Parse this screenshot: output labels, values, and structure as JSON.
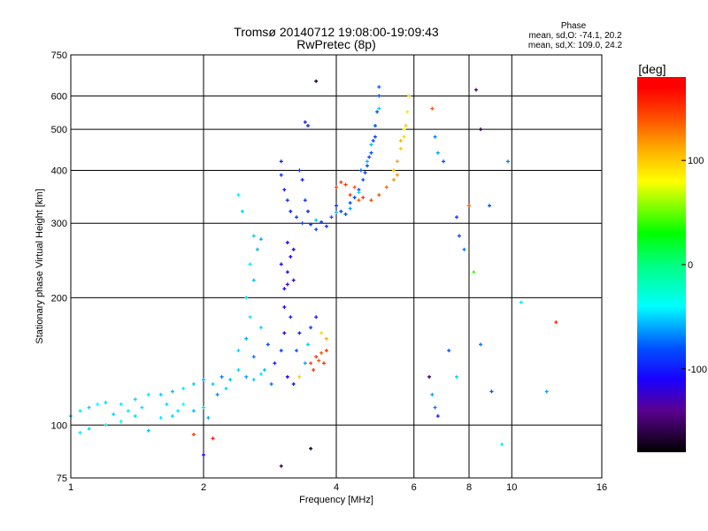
{
  "chart_data": {
    "type": "scatter",
    "title": "Tromsø 20140712 19:08:00-19:09:43",
    "subtitle": "RwPretec (8p)",
    "stats": {
      "heading": "Phase",
      "o_line": "mean, sd,O: -74.1, 20.2",
      "x_line": "mean, sd,X: 109.0, 24.2"
    },
    "xlabel": "Frequency [MHz]",
    "ylabel": "Stationary phase Virtual Height [km]",
    "xscale": "log2",
    "yscale": "log10",
    "xlim": [
      1,
      16
    ],
    "ylim": [
      75,
      750
    ],
    "xticks": [
      1,
      2,
      4,
      6,
      8,
      10,
      16
    ],
    "xtick_labels": [
      "1",
      "2",
      "4",
      "6",
      "8",
      "10",
      "16"
    ],
    "xgrid": [
      2,
      4,
      6,
      8,
      10
    ],
    "yticks": [
      75,
      100,
      200,
      300,
      400,
      500,
      600,
      750
    ],
    "ytick_labels": [
      "75",
      "100",
      "200",
      "300",
      "400",
      "500",
      "600",
      "750"
    ],
    "ygrid": [
      100,
      200,
      300,
      400,
      500,
      600
    ],
    "colorbar": {
      "label": "[deg]",
      "range": [
        -180,
        180
      ],
      "ticks": [
        100,
        0,
        -100
      ],
      "tick_labels": [
        "100",
        "0",
        "-100"
      ],
      "stops": [
        [
          -180,
          "#000000"
        ],
        [
          -140,
          "#5a0090"
        ],
        [
          -110,
          "#1a00ff"
        ],
        [
          -80,
          "#0050ff"
        ],
        [
          -40,
          "#00ffff"
        ],
        [
          0,
          "#00ff80"
        ],
        [
          30,
          "#00ff00"
        ],
        [
          80,
          "#ffff00"
        ],
        [
          110,
          "#ffb000"
        ],
        [
          140,
          "#ff5000"
        ],
        [
          170,
          "#ff0000"
        ],
        [
          180,
          "#ff0000"
        ]
      ]
    },
    "points": [
      [
        1.0,
        105,
        -50
      ],
      [
        1.05,
        108,
        -45
      ],
      [
        1.1,
        110,
        -50
      ],
      [
        1.15,
        112,
        -40
      ],
      [
        1.2,
        113,
        -50
      ],
      [
        1.3,
        112,
        -45
      ],
      [
        1.4,
        115,
        -50
      ],
      [
        1.5,
        118,
        -45
      ],
      [
        1.6,
        118,
        -50
      ],
      [
        1.7,
        120,
        -55
      ],
      [
        1.8,
        122,
        -45
      ],
      [
        1.9,
        125,
        -50
      ],
      [
        2.0,
        128,
        -60
      ],
      [
        2.1,
        125,
        -50
      ],
      [
        2.2,
        130,
        -70
      ],
      [
        2.3,
        128,
        -55
      ],
      [
        2.4,
        135,
        -50
      ],
      [
        2.5,
        130,
        -60
      ],
      [
        2.6,
        128,
        -50
      ],
      [
        2.7,
        132,
        -45
      ],
      [
        1.05,
        96,
        -45
      ],
      [
        1.1,
        98,
        -50
      ],
      [
        1.2,
        100,
        -45
      ],
      [
        1.3,
        102,
        -40
      ],
      [
        1.4,
        105,
        -50
      ],
      [
        1.5,
        97,
        -55
      ],
      [
        1.6,
        104,
        -45
      ],
      [
        1.7,
        105,
        -50
      ],
      [
        1.9,
        108,
        -55
      ],
      [
        2.0,
        110,
        -50
      ],
      [
        2.05,
        104,
        -60
      ],
      [
        1.8,
        112,
        -40
      ],
      [
        1.35,
        108,
        -45
      ],
      [
        1.25,
        106,
        -50
      ],
      [
        1.45,
        110,
        -45
      ],
      [
        1.65,
        112,
        -50
      ],
      [
        1.75,
        108,
        -45
      ],
      [
        2.15,
        118,
        -65
      ],
      [
        2.25,
        122,
        -50
      ],
      [
        2.4,
        150,
        -50
      ],
      [
        2.5,
        160,
        -60
      ],
      [
        2.55,
        180,
        -45
      ],
      [
        2.6,
        145,
        -70
      ],
      [
        2.7,
        170,
        -50
      ],
      [
        2.8,
        155,
        -80
      ],
      [
        2.9,
        140,
        -100
      ],
      [
        3.0,
        150,
        -90
      ],
      [
        3.1,
        130,
        -110
      ],
      [
        3.2,
        125,
        -100
      ],
      [
        3.3,
        165,
        -100
      ],
      [
        3.4,
        140,
        -60
      ],
      [
        3.5,
        170,
        -90
      ],
      [
        3.6,
        180,
        -100
      ],
      [
        2.75,
        135,
        -55
      ],
      [
        2.85,
        125,
        -70
      ],
      [
        3.05,
        165,
        -120
      ],
      [
        3.25,
        150,
        -80
      ],
      [
        3.45,
        155,
        -50
      ],
      [
        2.5,
        200,
        -50
      ],
      [
        2.6,
        220,
        -55
      ],
      [
        2.55,
        240,
        -45
      ],
      [
        2.6,
        280,
        -50
      ],
      [
        2.7,
        275,
        -60
      ],
      [
        2.4,
        350,
        -45
      ],
      [
        2.45,
        320,
        -50
      ],
      [
        2.65,
        260,
        -55
      ],
      [
        3.5,
        140,
        145
      ],
      [
        3.6,
        145,
        150
      ],
      [
        3.7,
        148,
        140
      ],
      [
        3.8,
        150,
        155
      ],
      [
        3.55,
        135,
        150
      ],
      [
        3.65,
        142,
        140
      ],
      [
        3.3,
        130,
        100
      ],
      [
        3.7,
        165,
        95
      ],
      [
        3.8,
        160,
        110
      ],
      [
        3.75,
        140,
        150
      ],
      [
        3.05,
        210,
        -110
      ],
      [
        3.1,
        230,
        -120
      ],
      [
        3.15,
        250,
        -115
      ],
      [
        3.1,
        270,
        -110
      ],
      [
        3.2,
        220,
        -120
      ],
      [
        3.05,
        190,
        -110
      ],
      [
        3.15,
        180,
        -100
      ],
      [
        3.0,
        240,
        -105
      ],
      [
        3.2,
        260,
        -115
      ],
      [
        3.1,
        215,
        -130
      ],
      [
        3.0,
        420,
        -100
      ],
      [
        3.0,
        390,
        -95
      ],
      [
        3.05,
        360,
        -100
      ],
      [
        3.1,
        340,
        -95
      ],
      [
        3.15,
        320,
        -100
      ],
      [
        3.25,
        310,
        -90
      ],
      [
        3.35,
        300,
        -85
      ],
      [
        3.5,
        298,
        -90
      ],
      [
        3.7,
        302,
        -85
      ],
      [
        3.9,
        310,
        -80
      ],
      [
        4.1,
        320,
        -85
      ],
      [
        4.3,
        335,
        -80
      ],
      [
        4.5,
        360,
        -85
      ],
      [
        4.6,
        380,
        -80
      ],
      [
        4.7,
        410,
        -85
      ],
      [
        4.8,
        440,
        -80
      ],
      [
        4.85,
        470,
        -85
      ],
      [
        4.9,
        510,
        -80
      ],
      [
        4.95,
        550,
        -85
      ],
      [
        5.0,
        600,
        -80
      ],
      [
        5.0,
        630,
        -75
      ],
      [
        3.35,
        380,
        -100
      ],
      [
        3.3,
        400,
        -95
      ],
      [
        3.4,
        340,
        -90
      ],
      [
        3.45,
        320,
        -95
      ],
      [
        4.0,
        330,
        -90
      ],
      [
        4.4,
        345,
        -85
      ],
      [
        4.2,
        315,
        -80
      ],
      [
        3.6,
        290,
        -85
      ],
      [
        3.8,
        295,
        -90
      ],
      [
        4.65,
        395,
        -90
      ],
      [
        4.75,
        430,
        -85
      ],
      [
        4.55,
        400,
        -80
      ],
      [
        4.9,
        480,
        -90
      ],
      [
        3.4,
        520,
        -100
      ],
      [
        3.45,
        510,
        -95
      ],
      [
        4.0,
        318,
        -55
      ],
      [
        4.5,
        355,
        -50
      ],
      [
        4.8,
        460,
        -55
      ],
      [
        5.0,
        560,
        -50
      ],
      [
        4.3,
        325,
        -60
      ],
      [
        3.6,
        305,
        -55
      ],
      [
        4.7,
        420,
        -55
      ],
      [
        4.2,
        370,
        150
      ],
      [
        4.4,
        365,
        140
      ],
      [
        4.6,
        345,
        150
      ],
      [
        4.8,
        340,
        145
      ],
      [
        5.0,
        350,
        140
      ],
      [
        5.2,
        365,
        135
      ],
      [
        5.4,
        380,
        120
      ],
      [
        4.3,
        350,
        150
      ],
      [
        4.0,
        365,
        145
      ],
      [
        4.1,
        375,
        150
      ],
      [
        4.5,
        340,
        140
      ],
      [
        5.4,
        400,
        110
      ],
      [
        5.5,
        420,
        115
      ],
      [
        5.6,
        450,
        100
      ],
      [
        5.7,
        480,
        95
      ],
      [
        5.75,
        510,
        100
      ],
      [
        5.8,
        550,
        90
      ],
      [
        5.85,
        600,
        95
      ],
      [
        5.5,
        390,
        120
      ],
      [
        5.6,
        470,
        110
      ],
      [
        5.7,
        500,
        85
      ],
      [
        6.6,
        560,
        140
      ],
      [
        6.7,
        480,
        -70
      ],
      [
        6.8,
        440,
        -60
      ],
      [
        7.0,
        420,
        -80
      ],
      [
        7.5,
        310,
        -90
      ],
      [
        7.6,
        280,
        -80
      ],
      [
        7.8,
        260,
        -70
      ],
      [
        8.0,
        330,
        140
      ],
      [
        8.3,
        620,
        -150
      ],
      [
        8.5,
        500,
        -160
      ],
      [
        8.9,
        330,
        -80
      ],
      [
        6.5,
        130,
        -150
      ],
      [
        6.6,
        118,
        -60
      ],
      [
        6.7,
        110,
        -70
      ],
      [
        6.8,
        105,
        -100
      ],
      [
        7.2,
        150,
        -80
      ],
      [
        7.5,
        130,
        -50
      ],
      [
        8.5,
        155,
        -70
      ],
      [
        9.0,
        120,
        -80
      ],
      [
        9.5,
        90,
        -45
      ],
      [
        9.8,
        420,
        -70
      ],
      [
        10.5,
        195,
        -45
      ],
      [
        12,
        120,
        -60
      ],
      [
        12.6,
        175,
        155
      ],
      [
        8.2,
        230,
        40
      ],
      [
        3.5,
        88,
        -170
      ],
      [
        3.0,
        80,
        -160
      ],
      [
        3.6,
        650,
        -170
      ],
      [
        1.9,
        95,
        150
      ],
      [
        2.1,
        93,
        165
      ],
      [
        2.0,
        85,
        -110
      ]
    ]
  }
}
